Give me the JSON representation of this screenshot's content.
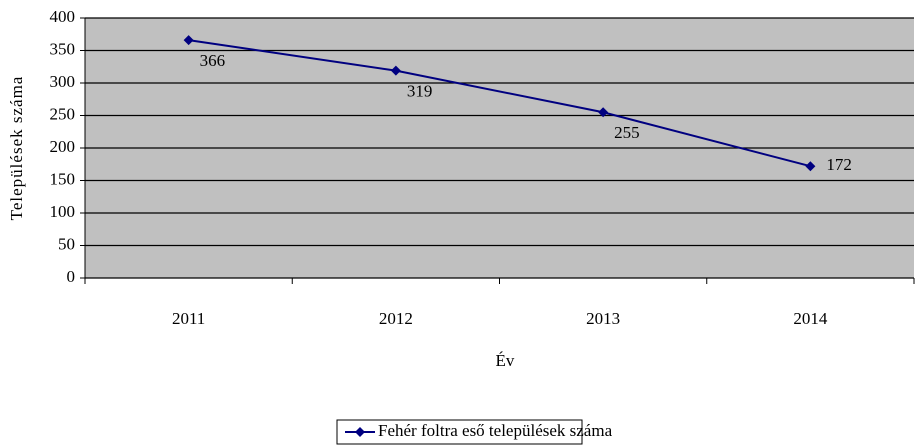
{
  "chart_data": {
    "type": "line",
    "xlabel": "Év",
    "ylabel": "Települések száma",
    "categories": [
      "2011",
      "2012",
      "2013",
      "2014"
    ],
    "series": [
      {
        "name": "Fehér foltra eső települések száma",
        "color": "#000080",
        "values": [
          366,
          319,
          255,
          172
        ]
      }
    ],
    "ylim": [
      0,
      400
    ],
    "yticks": [
      0,
      50,
      100,
      150,
      200,
      250,
      300,
      350,
      400
    ],
    "grid": true,
    "legend": "bottom"
  }
}
